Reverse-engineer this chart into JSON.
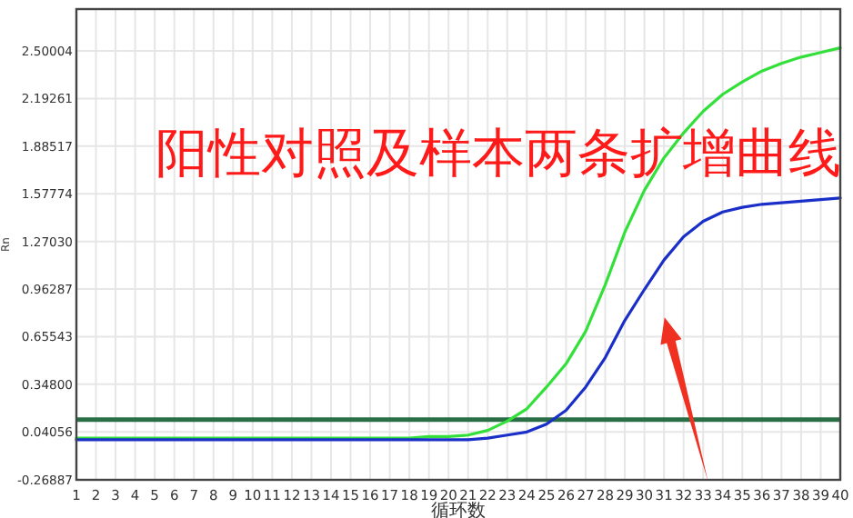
{
  "chart_data": {
    "type": "line",
    "title": "阳性对照及样本两条扩增曲线",
    "xlabel": "循环数",
    "ylabel": "Rn",
    "x": [
      1,
      2,
      3,
      4,
      5,
      6,
      7,
      8,
      9,
      10,
      11,
      12,
      13,
      14,
      15,
      16,
      17,
      18,
      19,
      20,
      21,
      22,
      23,
      24,
      25,
      26,
      27,
      28,
      29,
      30,
      31,
      32,
      33,
      34,
      35,
      36,
      37,
      38,
      39,
      40
    ],
    "series": [
      {
        "color": "#33e03a",
        "values": [
          0,
          0,
          0,
          0,
          0,
          0,
          0,
          0,
          0,
          0,
          0,
          0,
          0,
          0,
          0,
          0,
          0,
          0,
          0.01,
          0.01,
          0.02,
          0.05,
          0.11,
          0.19,
          0.33,
          0.48,
          0.69,
          0.99,
          1.33,
          1.6,
          1.81,
          1.97,
          2.11,
          2.22,
          2.3,
          2.37,
          2.42,
          2.46,
          2.49,
          2.52
        ]
      },
      {
        "color": "#1a2fc8",
        "values": [
          -0.01,
          -0.01,
          -0.01,
          -0.01,
          -0.01,
          -0.01,
          -0.01,
          -0.01,
          -0.01,
          -0.01,
          -0.01,
          -0.01,
          -0.01,
          -0.01,
          -0.01,
          -0.01,
          -0.01,
          -0.01,
          -0.01,
          -0.01,
          -0.01,
          0,
          0.02,
          0.04,
          0.09,
          0.18,
          0.33,
          0.52,
          0.76,
          0.96,
          1.15,
          1.3,
          1.4,
          1.46,
          1.49,
          1.51,
          1.52,
          1.53,
          1.54,
          1.55
        ]
      }
    ],
    "xlim": [
      1,
      40
    ],
    "ylim": [
      -0.26887,
      2.77
    ],
    "xticks": [
      1,
      2,
      3,
      4,
      5,
      6,
      7,
      8,
      9,
      10,
      11,
      12,
      13,
      14,
      15,
      16,
      17,
      18,
      19,
      20,
      21,
      22,
      23,
      24,
      25,
      26,
      27,
      28,
      29,
      30,
      31,
      32,
      33,
      34,
      35,
      36,
      37,
      38,
      39,
      40
    ],
    "yticks": [
      {
        "value": -0.26887,
        "label": "-0.26887"
      },
      {
        "value": 0.04056,
        "label": "0.04056"
      },
      {
        "value": 0.348,
        "label": "0.34800"
      },
      {
        "value": 0.65543,
        "label": "0.65543"
      },
      {
        "value": 0.96287,
        "label": "0.96287"
      },
      {
        "value": 1.2703,
        "label": "1.27030"
      },
      {
        "value": 1.57774,
        "label": "1.57774"
      },
      {
        "value": 1.88517,
        "label": "1.88517"
      },
      {
        "value": 2.19261,
        "label": "2.19261"
      },
      {
        "value": 2.50004,
        "label": "2.50004"
      }
    ],
    "grid": true,
    "ref_lines": [
      {
        "axis": "y",
        "value": 0.12,
        "color": "#2a6e45"
      }
    ]
  }
}
